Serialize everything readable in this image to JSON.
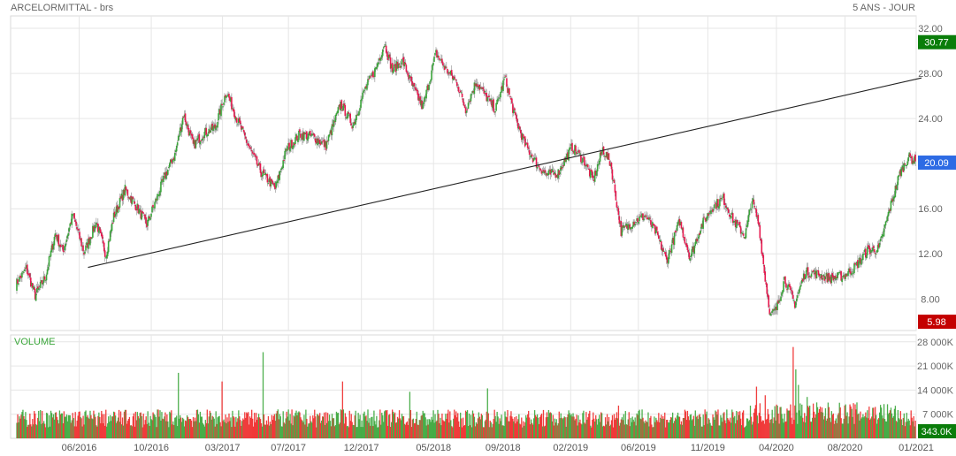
{
  "header": {
    "title": "ARCELORMITTAL - brs",
    "period": "5 ANS - JOUR"
  },
  "chart_data": [
    {
      "type": "candlestick",
      "title": "ARCELORMITTAL - brs",
      "y_ticks": [
        "32.00",
        "28.00",
        "24.00",
        "20.00",
        "16.00",
        "12.00",
        "8.00"
      ],
      "y_tick_values": [
        32,
        28,
        24,
        20,
        16,
        12,
        8
      ],
      "ylim": [
        5.2,
        33.1
      ],
      "x_ticks": [
        "06/2016",
        "10/2016",
        "03/2017",
        "07/2017",
        "12/2017",
        "05/2018",
        "09/2018",
        "02/2019",
        "06/2019",
        "11/2019",
        "04/2020",
        "08/2020",
        "01/2021"
      ],
      "x_tick_index": [
        78,
        160,
        241,
        316,
        399,
        481,
        560,
        637,
        714,
        793,
        871,
        949,
        1030
      ],
      "price_path": [
        [
          0,
          9.3
        ],
        [
          12,
          10.7
        ],
        [
          22,
          8.3
        ],
        [
          34,
          10.0
        ],
        [
          45,
          13.8
        ],
        [
          54,
          12.2
        ],
        [
          65,
          15.5
        ],
        [
          78,
          12.1
        ],
        [
          92,
          14.8
        ],
        [
          103,
          11.9
        ],
        [
          112,
          15.3
        ],
        [
          125,
          17.7
        ],
        [
          138,
          16.2
        ],
        [
          150,
          14.6
        ],
        [
          161,
          16.9
        ],
        [
          170,
          18.8
        ],
        [
          182,
          20.8
        ],
        [
          192,
          24.4
        ],
        [
          203,
          21.6
        ],
        [
          215,
          22.7
        ],
        [
          228,
          23.2
        ],
        [
          241,
          26.4
        ],
        [
          253,
          24.0
        ],
        [
          266,
          21.6
        ],
        [
          280,
          19.3
        ],
        [
          297,
          17.8
        ],
        [
          310,
          21.3
        ],
        [
          325,
          22.6
        ],
        [
          340,
          22.4
        ],
        [
          355,
          21.6
        ],
        [
          372,
          25.3
        ],
        [
          386,
          23.4
        ],
        [
          399,
          26.5
        ],
        [
          412,
          28.4
        ],
        [
          422,
          30.7
        ],
        [
          431,
          28.3
        ],
        [
          443,
          29.1
        ],
        [
          455,
          26.7
        ],
        [
          466,
          25.0
        ],
        [
          481,
          29.8
        ],
        [
          493,
          28.3
        ],
        [
          505,
          27.2
        ],
        [
          515,
          24.8
        ],
        [
          527,
          27.3
        ],
        [
          537,
          26.1
        ],
        [
          549,
          24.8
        ],
        [
          560,
          27.6
        ],
        [
          572,
          24.0
        ],
        [
          583,
          21.7
        ],
        [
          597,
          19.9
        ],
        [
          608,
          19.0
        ],
        [
          621,
          19.2
        ],
        [
          637,
          21.5
        ],
        [
          651,
          20.2
        ],
        [
          661,
          18.5
        ],
        [
          672,
          21.3
        ],
        [
          681,
          20.0
        ],
        [
          693,
          14.0
        ],
        [
          706,
          14.8
        ],
        [
          721,
          15.4
        ],
        [
          733,
          13.9
        ],
        [
          745,
          11.4
        ],
        [
          760,
          14.9
        ],
        [
          772,
          11.7
        ],
        [
          785,
          14.5
        ],
        [
          797,
          16.1
        ],
        [
          810,
          16.9
        ],
        [
          822,
          14.9
        ],
        [
          835,
          13.6
        ],
        [
          843,
          16.8
        ],
        [
          851,
          14.5
        ],
        [
          857,
          10.4
        ],
        [
          864,
          6.5
        ],
        [
          871,
          7.1
        ],
        [
          880,
          9.8
        ],
        [
          892,
          7.6
        ],
        [
          904,
          10.4
        ],
        [
          918,
          10.2
        ],
        [
          933,
          9.8
        ],
        [
          949,
          10.1
        ],
        [
          962,
          10.9
        ],
        [
          975,
          12.3
        ],
        [
          988,
          12.4
        ],
        [
          1000,
          15.8
        ],
        [
          1012,
          19.1
        ],
        [
          1022,
          20.6
        ],
        [
          1030,
          20.2
        ]
      ],
      "trendline": {
        "start": [
          88,
          10.8
        ],
        "end": [
          1036,
          27.6
        ]
      },
      "last_price": {
        "label": "20.09",
        "value": 20.09,
        "color": "#2d6be4"
      },
      "high_marker": {
        "label": "30.77",
        "value": 30.77,
        "color": "#0a7d0a"
      },
      "low_marker": {
        "label": "5.98",
        "value": 5.98,
        "color": "#c40000"
      },
      "colors": {
        "up": "#3aa63a",
        "down": "#e8194f",
        "trend": "#222222"
      }
    },
    {
      "type": "bar",
      "title": "VOLUME",
      "title_color": "#3aa63a",
      "y_ticks": [
        "28 000K",
        "21 000K",
        "14 000K",
        "7 000K"
      ],
      "y_tick_values": [
        28000,
        21000,
        14000,
        7000
      ],
      "ylim": [
        0,
        30000
      ],
      "units": "K",
      "typical_volume": 7000,
      "spikes": [
        [
          186,
          19000
        ],
        [
          236,
          16500
        ],
        [
          283,
          25000
        ],
        [
          374,
          16500
        ],
        [
          451,
          13500
        ],
        [
          540,
          14500
        ],
        [
          690,
          9500
        ],
        [
          848,
          15000
        ],
        [
          858,
          12500
        ],
        [
          890,
          26500
        ],
        [
          893,
          20000
        ],
        [
          896,
          15500
        ],
        [
          906,
          12000
        ]
      ],
      "last_volume": {
        "label": "343.0K",
        "value": 343.0,
        "color": "#0a7d0a"
      },
      "colors": {
        "up": "#3aa63a",
        "down": "#ee2a2a"
      }
    }
  ]
}
